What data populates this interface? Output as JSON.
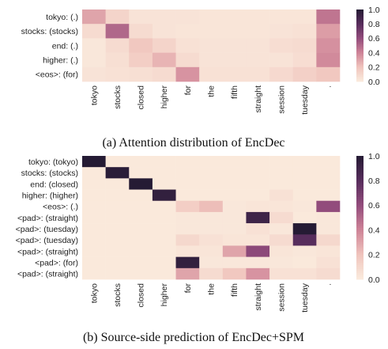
{
  "chart_data": [
    {
      "type": "heatmap",
      "caption": "(a) Attention distribution of EncDec",
      "x_labels": [
        "tokyo",
        "stocks",
        "closed",
        "higher",
        "for",
        "the",
        "fifth",
        "straight",
        "session",
        "tuesday",
        "."
      ],
      "y_labels": [
        "tokyo: (.)",
        "stocks: (stocks)",
        "end: (.)",
        "higher: (.)",
        "<eos>: (for)"
      ],
      "values": [
        [
          0.3,
          0.12,
          0.04,
          0.04,
          0.04,
          0.03,
          0.03,
          0.03,
          0.03,
          0.03,
          0.45
        ],
        [
          0.08,
          0.5,
          0.08,
          0.04,
          0.03,
          0.03,
          0.03,
          0.03,
          0.04,
          0.05,
          0.32
        ],
        [
          0.02,
          0.08,
          0.18,
          0.12,
          0.05,
          0.04,
          0.04,
          0.04,
          0.07,
          0.08,
          0.36
        ],
        [
          0.02,
          0.06,
          0.15,
          0.25,
          0.08,
          0.04,
          0.04,
          0.04,
          0.04,
          0.07,
          0.38
        ],
        [
          0.04,
          0.05,
          0.06,
          0.08,
          0.35,
          0.05,
          0.05,
          0.05,
          0.09,
          0.14,
          0.18
        ]
      ],
      "colorbar": {
        "min": 0.0,
        "max": 1.0,
        "ticks": [
          "0.0",
          "0.2",
          "0.4",
          "0.6",
          "0.8",
          "1.0"
        ]
      }
    },
    {
      "type": "heatmap",
      "caption": "(b) Source-side prediction of EncDec+SPM",
      "x_labels": [
        "tokyo",
        "stocks",
        "closed",
        "higher",
        "for",
        "the",
        "fifth",
        "straight",
        "session",
        "tuesday",
        "."
      ],
      "y_labels": [
        "tokyo: (tokyo)",
        "stocks: (stocks)",
        "end: (closed)",
        "higher: (higher)",
        "<eos>: (.)",
        "<pad>: (straight)",
        "<pad>: (tuesday)",
        "<pad>: (tuesday)",
        "<pad>: (straight)",
        "<pad>: (for)",
        "<pad>: (straight)"
      ],
      "values": [
        [
          1.0,
          0.01,
          0.01,
          0.01,
          0.01,
          0.01,
          0.01,
          0.01,
          0.01,
          0.01,
          0.01
        ],
        [
          0.01,
          0.98,
          0.01,
          0.01,
          0.01,
          0.01,
          0.01,
          0.01,
          0.01,
          0.01,
          0.01
        ],
        [
          0.01,
          0.01,
          1.0,
          0.01,
          0.01,
          0.01,
          0.01,
          0.01,
          0.01,
          0.01,
          0.01
        ],
        [
          0.01,
          0.01,
          0.01,
          0.95,
          0.01,
          0.01,
          0.01,
          0.01,
          0.05,
          0.01,
          0.01
        ],
        [
          0.01,
          0.01,
          0.01,
          0.01,
          0.15,
          0.22,
          0.02,
          0.03,
          0.03,
          0.02,
          0.6
        ],
        [
          0.01,
          0.01,
          0.01,
          0.01,
          0.02,
          0.02,
          0.02,
          0.9,
          0.08,
          0.01,
          0.02
        ],
        [
          0.01,
          0.01,
          0.01,
          0.01,
          0.02,
          0.02,
          0.02,
          0.05,
          0.02,
          1.0,
          0.02
        ],
        [
          0.01,
          0.01,
          0.01,
          0.01,
          0.1,
          0.05,
          0.03,
          0.03,
          0.08,
          0.8,
          0.1
        ],
        [
          0.01,
          0.01,
          0.01,
          0.01,
          0.03,
          0.03,
          0.3,
          0.62,
          0.03,
          0.02,
          0.03
        ],
        [
          0.01,
          0.01,
          0.01,
          0.01,
          0.95,
          0.02,
          0.02,
          0.02,
          0.02,
          0.01,
          0.05
        ],
        [
          0.01,
          0.01,
          0.01,
          0.01,
          0.3,
          0.08,
          0.18,
          0.35,
          0.05,
          0.05,
          0.08
        ]
      ],
      "colorbar": {
        "min": 0.0,
        "max": 1.0,
        "ticks": [
          "0.0",
          "0.2",
          "0.4",
          "0.6",
          "0.8",
          "1.0"
        ]
      }
    }
  ]
}
